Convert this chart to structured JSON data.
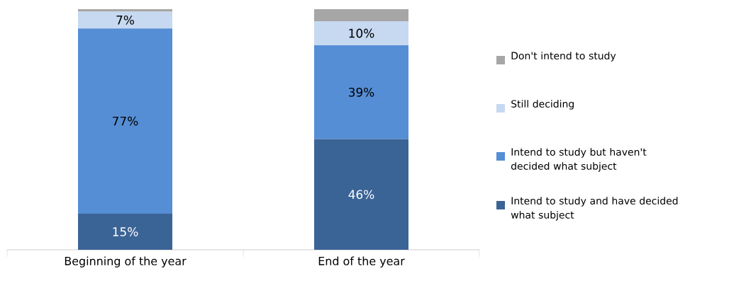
{
  "chart_data": {
    "type": "bar",
    "stacked": true,
    "legend": "right",
    "categories": [
      "Beginning of the year",
      "End of the year"
    ],
    "series": [
      {
        "name": "Intend to study and have decided what subject",
        "color": "#3b6496",
        "values": [
          15,
          46
        ],
        "value_labels": [
          "15%",
          "46%"
        ]
      },
      {
        "name": "Intend to study but haven't decided what subject",
        "color": "#558ed5",
        "values": [
          77,
          39
        ],
        "value_labels": [
          "77%",
          "39%"
        ]
      },
      {
        "name": "Still deciding",
        "color": "#c6d9f1",
        "values": [
          7,
          10
        ],
        "value_labels": [
          "7%",
          "10%"
        ]
      },
      {
        "name": "Don't intend to study",
        "color": "#a6a6a6",
        "values": [
          1,
          5
        ],
        "value_labels": [
          null,
          null
        ]
      }
    ]
  }
}
